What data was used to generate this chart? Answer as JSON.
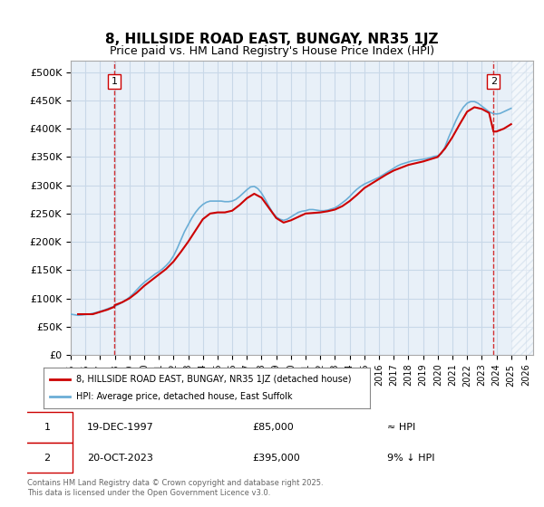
{
  "title": "8, HILLSIDE ROAD EAST, BUNGAY, NR35 1JZ",
  "subtitle": "Price paid vs. HM Land Registry's House Price Index (HPI)",
  "ylabel": "",
  "ylim": [
    0,
    520000
  ],
  "yticks": [
    0,
    50000,
    100000,
    150000,
    200000,
    250000,
    300000,
    350000,
    400000,
    450000,
    500000
  ],
  "ytick_labels": [
    "£0",
    "£50K",
    "£100K",
    "£150K",
    "£200K",
    "£250K",
    "£300K",
    "£350K",
    "£400K",
    "£450K",
    "£500K"
  ],
  "xlim_start": 1995.0,
  "xlim_end": 2026.5,
  "xtick_years": [
    1995,
    1996,
    1997,
    1998,
    1999,
    2000,
    2001,
    2002,
    2003,
    2004,
    2005,
    2006,
    2007,
    2008,
    2009,
    2010,
    2011,
    2012,
    2013,
    2014,
    2015,
    2016,
    2017,
    2018,
    2019,
    2020,
    2021,
    2022,
    2023,
    2024,
    2025,
    2026
  ],
  "sale1_x": 1997.97,
  "sale1_y": 85000,
  "sale1_label": "1",
  "sale1_date": "19-DEC-1997",
  "sale1_price": "£85,000",
  "sale1_hpi": "≈ HPI",
  "sale2_x": 2023.8,
  "sale2_y": 395000,
  "sale2_label": "2",
  "sale2_date": "20-OCT-2023",
  "sale2_price": "£395,000",
  "sale2_hpi": "9% ↓ HPI",
  "hpi_line_color": "#6baed6",
  "price_line_color": "#cc0000",
  "grid_color": "#c8d8e8",
  "bg_color": "#e8f0f8",
  "legend_line1": "8, HILLSIDE ROAD EAST, BUNGAY, NR35 1JZ (detached house)",
  "legend_line2": "HPI: Average price, detached house, East Suffolk",
  "footer": "Contains HM Land Registry data © Crown copyright and database right 2025.\nThis data is licensed under the Open Government Licence v3.0.",
  "hpi_data_x": [
    1995.0,
    1995.25,
    1995.5,
    1995.75,
    1996.0,
    1996.25,
    1996.5,
    1996.75,
    1997.0,
    1997.25,
    1997.5,
    1997.75,
    1998.0,
    1998.25,
    1998.5,
    1998.75,
    1999.0,
    1999.25,
    1999.5,
    1999.75,
    2000.0,
    2000.25,
    2000.5,
    2000.75,
    2001.0,
    2001.25,
    2001.5,
    2001.75,
    2002.0,
    2002.25,
    2002.5,
    2002.75,
    2003.0,
    2003.25,
    2003.5,
    2003.75,
    2004.0,
    2004.25,
    2004.5,
    2004.75,
    2005.0,
    2005.25,
    2005.5,
    2005.75,
    2006.0,
    2006.25,
    2006.5,
    2006.75,
    2007.0,
    2007.25,
    2007.5,
    2007.75,
    2008.0,
    2008.25,
    2008.5,
    2008.75,
    2009.0,
    2009.25,
    2009.5,
    2009.75,
    2010.0,
    2010.25,
    2010.5,
    2010.75,
    2011.0,
    2011.25,
    2011.5,
    2011.75,
    2012.0,
    2012.25,
    2012.5,
    2012.75,
    2013.0,
    2013.25,
    2013.5,
    2013.75,
    2014.0,
    2014.25,
    2014.5,
    2014.75,
    2015.0,
    2015.25,
    2015.5,
    2015.75,
    2016.0,
    2016.25,
    2016.5,
    2016.75,
    2017.0,
    2017.25,
    2017.5,
    2017.75,
    2018.0,
    2018.25,
    2018.5,
    2018.75,
    2019.0,
    2019.25,
    2019.5,
    2019.75,
    2020.0,
    2020.25,
    2020.5,
    2020.75,
    2021.0,
    2021.25,
    2021.5,
    2021.75,
    2022.0,
    2022.25,
    2022.5,
    2022.75,
    2023.0,
    2023.25,
    2023.5,
    2023.75,
    2024.0,
    2024.25,
    2024.5,
    2024.75,
    2025.0
  ],
  "hpi_data_y": [
    72000,
    71000,
    70000,
    70500,
    71500,
    72000,
    73500,
    75000,
    77000,
    79000,
    81500,
    84000,
    86000,
    89000,
    93000,
    97000,
    102000,
    108000,
    115000,
    122000,
    128000,
    133000,
    138000,
    143000,
    147000,
    152000,
    158000,
    165000,
    175000,
    188000,
    203000,
    218000,
    230000,
    242000,
    252000,
    260000,
    266000,
    270000,
    272000,
    272000,
    272000,
    272000,
    271000,
    271000,
    272000,
    275000,
    280000,
    286000,
    292000,
    297000,
    298000,
    294000,
    286000,
    275000,
    263000,
    252000,
    244000,
    240000,
    238000,
    240000,
    244000,
    248000,
    252000,
    254000,
    255000,
    257000,
    257000,
    256000,
    255000,
    255000,
    256000,
    258000,
    260000,
    264000,
    269000,
    274000,
    280000,
    287000,
    293000,
    298000,
    302000,
    305000,
    308000,
    311000,
    314000,
    318000,
    322000,
    326000,
    330000,
    334000,
    337000,
    339000,
    341000,
    343000,
    344000,
    345000,
    346000,
    347000,
    349000,
    351000,
    352000,
    356000,
    368000,
    385000,
    400000,
    415000,
    428000,
    438000,
    445000,
    448000,
    448000,
    445000,
    440000,
    435000,
    430000,
    427000,
    426000,
    427000,
    430000,
    433000,
    436000
  ],
  "price_data_x": [
    1995.5,
    1996.0,
    1996.5,
    1997.0,
    1997.5,
    1997.97,
    1998.0,
    1998.5,
    1999.0,
    1999.5,
    2000.0,
    2000.5,
    2001.0,
    2001.5,
    2002.0,
    2002.5,
    2003.0,
    2003.5,
    2004.0,
    2004.5,
    2005.0,
    2005.5,
    2006.0,
    2006.5,
    2007.0,
    2007.5,
    2008.0,
    2008.5,
    2009.0,
    2009.5,
    2010.0,
    2010.5,
    2011.0,
    2011.5,
    2012.0,
    2012.5,
    2013.0,
    2013.5,
    2014.0,
    2014.5,
    2015.0,
    2015.5,
    2016.0,
    2016.5,
    2017.0,
    2017.5,
    2018.0,
    2018.5,
    2019.0,
    2019.5,
    2020.0,
    2020.5,
    2021.0,
    2021.5,
    2022.0,
    2022.5,
    2023.0,
    2023.5,
    2023.8,
    2024.0,
    2024.5,
    2025.0
  ],
  "price_data_y": [
    72000,
    72000,
    72000,
    76000,
    80000,
    85000,
    88000,
    93000,
    100000,
    110000,
    122000,
    132000,
    142000,
    152000,
    165000,
    182000,
    200000,
    220000,
    240000,
    250000,
    252000,
    252000,
    255000,
    265000,
    277000,
    285000,
    278000,
    260000,
    242000,
    234000,
    238000,
    244000,
    250000,
    251000,
    252000,
    254000,
    257000,
    263000,
    272000,
    283000,
    295000,
    303000,
    311000,
    319000,
    326000,
    331000,
    336000,
    339000,
    342000,
    346000,
    350000,
    365000,
    385000,
    408000,
    430000,
    438000,
    435000,
    428000,
    395000,
    395000,
    400000,
    408000
  ]
}
